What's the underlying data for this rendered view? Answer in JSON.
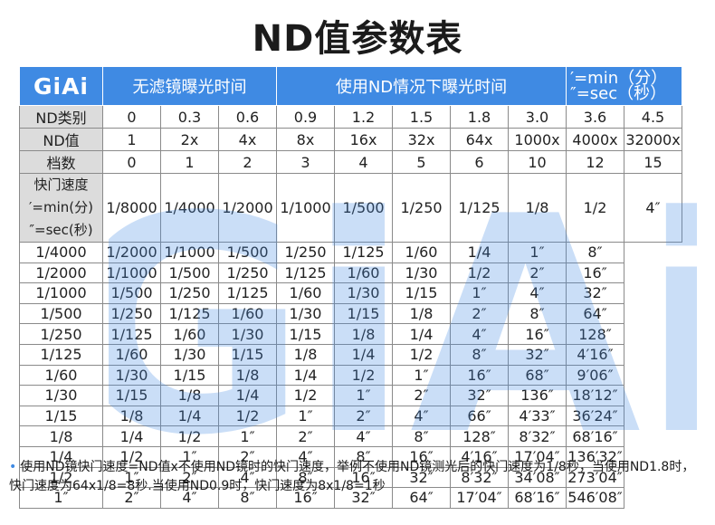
{
  "title": "ND值参数表",
  "logo": "GiAi",
  "watermark": "GiAi",
  "header": {
    "no_filter": "无滤镜曝光时间",
    "with_filter": "使用ND情况下曝光时间",
    "unit_min": "′=min（分）",
    "unit_sec": "″=sec（秒）"
  },
  "rows": {
    "type_label": "ND类别",
    "value_label": "ND值",
    "stop_label": "档数",
    "types": [
      "0",
      "0.3",
      "0.6",
      "0.9",
      "1.2",
      "1.5",
      "1.8",
      "3.0",
      "3.6",
      "4.5"
    ],
    "values": [
      "1",
      "2x",
      "4x",
      "8x",
      "16x",
      "32x",
      "64x",
      "1000x",
      "4000x",
      "32000x"
    ],
    "stops": [
      "0",
      "1",
      "2",
      "3",
      "4",
      "5",
      "6",
      "10",
      "12",
      "15"
    ]
  },
  "shutter": {
    "label_1": "快门速度",
    "label_2": "′=min(分)",
    "label_3": "″=sec(秒)",
    "grid": [
      [
        "1/8000",
        "1/4000",
        "1/2000",
        "1/1000",
        "1/500",
        "1/250",
        "1/125",
        "1/8",
        "1/2",
        "4″"
      ],
      [
        "1/4000",
        "1/2000",
        "1/1000",
        "1/500",
        "1/250",
        "1/125",
        "1/60",
        "1/4",
        "1″",
        "8″"
      ],
      [
        "1/2000",
        "1/1000",
        "1/500",
        "1/250",
        "1/125",
        "1/60",
        "1/30",
        "1/2",
        "2″",
        "16″"
      ],
      [
        "1/1000",
        "1/500",
        "1/250",
        "1/125",
        "1/60",
        "1/30",
        "1/15",
        "1″",
        "4″",
        "32″"
      ],
      [
        "1/500",
        "1/250",
        "1/125",
        "1/60",
        "1/30",
        "1/15",
        "1/8",
        "2″",
        "8″",
        "64″"
      ],
      [
        "1/250",
        "1/125",
        "1/60",
        "1/30",
        "1/15",
        "1/8",
        "1/4",
        "4″",
        "16″",
        "128″"
      ],
      [
        "1/125",
        "1/60",
        "1/30",
        "1/15",
        "1/8",
        "1/4",
        "1/2",
        "8″",
        "32″",
        "4′16″"
      ],
      [
        "1/60",
        "1/30",
        "1/15",
        "1/8",
        "1/4",
        "1/2",
        "1″",
        "16″",
        "68″",
        "9′06″"
      ],
      [
        "1/30",
        "1/15",
        "1/8",
        "1/4",
        "1/2",
        "1″",
        "2″",
        "32″",
        "136″",
        "18′12″"
      ],
      [
        "1/15",
        "1/8",
        "1/4",
        "1/2",
        "1″",
        "2″",
        "4″",
        "66″",
        "4′33″",
        "36′24″"
      ],
      [
        "1/8",
        "1/4",
        "1/2",
        "1″",
        "2″",
        "4″",
        "8″",
        "128″",
        "8′32″",
        "68′16″"
      ],
      [
        "1/4",
        "1/2",
        "1″",
        "2″",
        "4″",
        "8″",
        "16″",
        "4′16″",
        "17′04″",
        "136′32″"
      ],
      [
        "1/2",
        "1″",
        "2″",
        "4″",
        "8″",
        "16″",
        "32″",
        "8′32″",
        "34′08″",
        "273′04″"
      ],
      [
        "1″",
        "2″",
        "4″",
        "8″",
        "16″",
        "32″",
        "64″",
        "17′04″",
        "68′16″",
        "546′08″"
      ]
    ]
  },
  "footnote": "使用ND镜快门速度=ND值x不使用ND镜时的快门速度，举例不使用ND镜测光后的快门速度为1/8秒，当使用ND1.8时，快门速度为64x1/8=8秒.当使用ND0.9时，快门速度为8x1/8=1秒",
  "colors": {
    "accent": "#3f8ae3",
    "label_bg": "#dcdcdc"
  }
}
